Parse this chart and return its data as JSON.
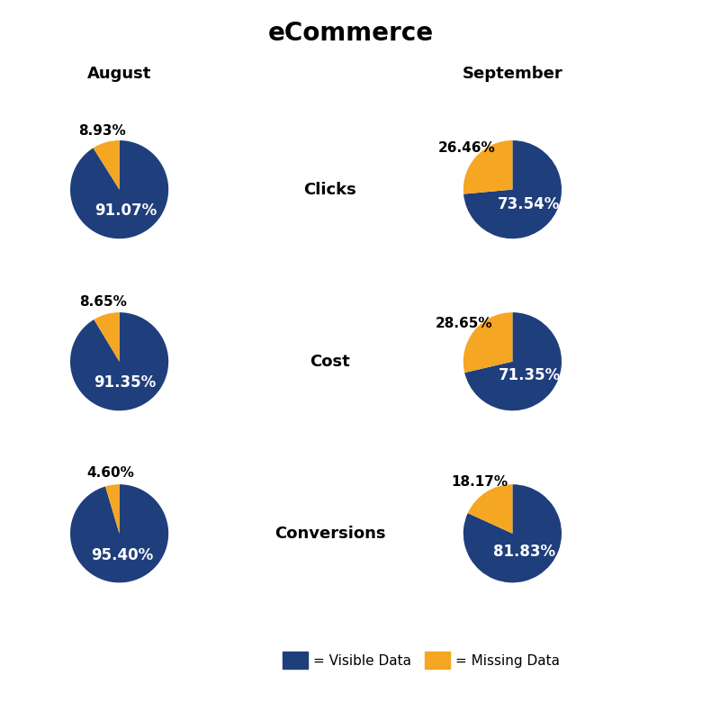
{
  "title": "eCommerce",
  "col_labels": [
    "August",
    "September"
  ],
  "row_labels": [
    "Clicks",
    "Cost",
    "Conversions"
  ],
  "charts": [
    [
      {
        "visible": 91.07,
        "missing": 8.93
      },
      {
        "visible": 73.54,
        "missing": 26.46
      }
    ],
    [
      {
        "visible": 91.35,
        "missing": 8.65
      },
      {
        "visible": 71.35,
        "missing": 28.65
      }
    ],
    [
      {
        "visible": 95.4,
        "missing": 4.6
      },
      {
        "visible": 81.83,
        "missing": 18.17
      }
    ]
  ],
  "colors": {
    "visible": "#1F3E7C",
    "missing": "#F5A623"
  },
  "background_color": "#FFFFFF",
  "title_fontsize": 20,
  "col_label_fontsize": 13,
  "row_label_fontsize": 13,
  "pct_fontsize_visible": 12,
  "pct_fontsize_missing": 11,
  "legend_fontsize": 11
}
